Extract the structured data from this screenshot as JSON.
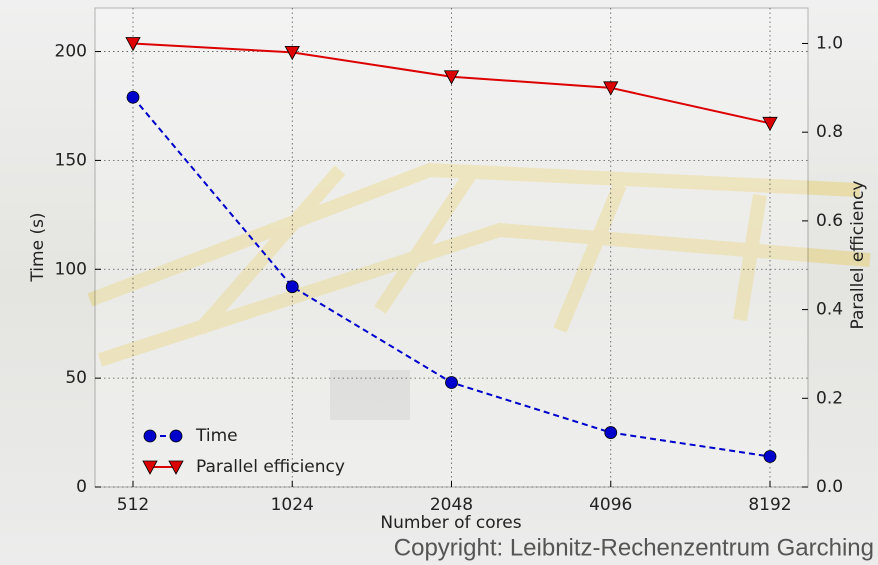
{
  "chart_data": {
    "type": "line",
    "annotation": "Copyright: Leibnitz-Rechenzentrum Garching",
    "x_label": "Number of cores",
    "y_label": "Time (s)",
    "y2_label": "Parallel efficiency",
    "categories": [
      "512",
      "1024",
      "2048",
      "4096",
      "8192"
    ],
    "series": [
      {
        "name": "Time",
        "color": "#0000cc",
        "linestyle": "dashed",
        "marker": "circle",
        "values": [
          179,
          92,
          48,
          25,
          14
        ]
      },
      {
        "name": "Parallel efficiency",
        "color": "#dd0000",
        "linestyle": "solid",
        "marker": "triangle-down",
        "axis": "y2",
        "values": [
          1.0,
          0.98,
          0.925,
          0.9,
          0.82
        ]
      }
    ],
    "ylim": [
      0,
      220
    ],
    "yticks": [
      0,
      50,
      100,
      150,
      200
    ],
    "y2lim": [
      0,
      1.08
    ],
    "y2ticks": [
      {
        "value": 0,
        "label": "0.0"
      },
      0.2,
      0.4,
      0.6,
      0.8,
      {
        "value": 1,
        "label": "1.0"
      }
    ],
    "grid": true,
    "legend": "lower left"
  }
}
